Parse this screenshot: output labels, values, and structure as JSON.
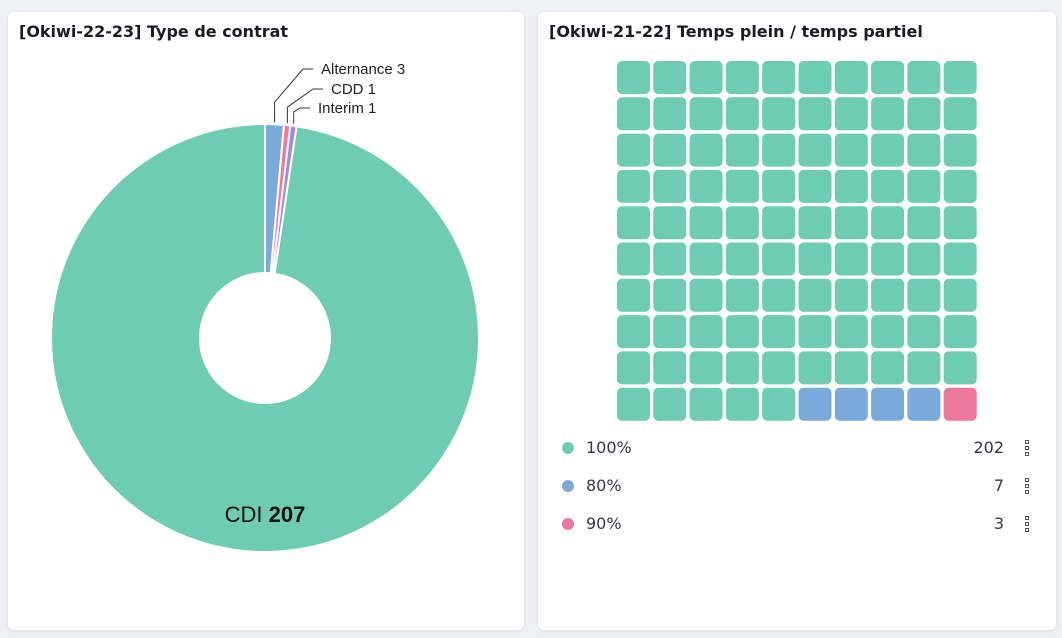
{
  "chart_data": [
    {
      "type": "pie",
      "title": "[Okiwi-22-23] Type de contrat",
      "donut": true,
      "slices": [
        {
          "label": "Alternance",
          "value": 3,
          "color": "#79aad9"
        },
        {
          "label": "CDD",
          "value": 1,
          "color": "#ee789d"
        },
        {
          "label": "Interim",
          "value": 1,
          "color": "#a987d1"
        },
        {
          "label": "CDI",
          "value": 207,
          "color": "#6dccb1"
        }
      ]
    },
    {
      "type": "waffle",
      "title": "[Okiwi-21-22] Temps plein / temps partiel",
      "series": [
        {
          "label": "100%",
          "value": 202,
          "color": "#6dccb1",
          "cells": 95
        },
        {
          "label": "80%",
          "value": 7,
          "color": "#79aad9",
          "cells": 4
        },
        {
          "label": "90%",
          "value": 3,
          "color": "#ee789d",
          "cells": 1
        }
      ]
    }
  ]
}
